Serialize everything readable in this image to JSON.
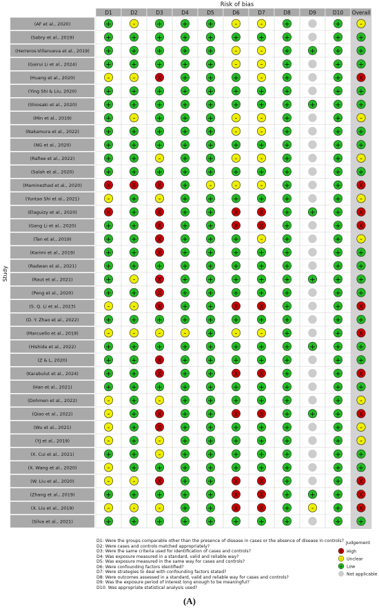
{
  "chart_data": {
    "type": "table",
    "title": "Risk of bias",
    "ylabel": "Study",
    "domains": [
      "D1",
      "D2",
      "D3",
      "D4",
      "D5",
      "D6",
      "D7",
      "D8",
      "D9",
      "D10",
      "Overall"
    ],
    "studies": [
      "(AF et al., 2020)",
      "(Sabry et al., 2019)",
      "(Herreros-Villanueva et al., 2019)",
      "(Gairui Li et al., 2024)",
      "(Huang et al., 2020)",
      "(Ying Shi & Liu, 2020)",
      "(Shiosaki et al., 2020)",
      "(Min et al., 2019)",
      "(Nakamura et al., 2022)",
      "(NG et al., 2020)",
      "(Rafiee et al., 2022)",
      "(Salah et al., 2020)",
      "(Maminezhad et al., 2020)",
      "(Yuntao Shi et al., 2021)",
      "(Elaguizy et al., 2020)",
      "(Gang Li et al., 2020)",
      "(Tan et al., 2019)",
      "(Karimi et al., 2019)",
      "(Radwan et al., 2021)",
      "(Raut et al., 2021)",
      "(Peng et al., 2020)",
      "(S. Q. Li et al., 2023)",
      "(D. Y. Zhao et al., 2022)",
      "(Marcuello et al., 2019)",
      "(Hishida et al., 2022)",
      "(Z & L, 2020)",
      "(Karabulut et al., 2024)",
      "(Han et al., 2021)",
      "(Dohmen et al., 2022)",
      "(Qiao et al., 2022)",
      "(Wu et al., 2021)",
      "(YJ et al., 2019)",
      "(X. Cui et al., 2021)",
      "(X. Wang et al., 2020)",
      "(W. Liu et al., 2020)",
      "(Zhang et al., 2019)",
      "(X. Liu et al., 2019)",
      "(Silva et al., 2021)"
    ],
    "judgements": [
      [
        "L",
        "U",
        "L",
        "L",
        "L",
        "U",
        "U",
        "L",
        "N",
        "L",
        "U"
      ],
      [
        "L",
        "L",
        "L",
        "L",
        "L",
        "L",
        "L",
        "L",
        "N",
        "L",
        "L"
      ],
      [
        "L",
        "L",
        "L",
        "L",
        "L",
        "U",
        "U",
        "L",
        "L",
        "L",
        "L"
      ],
      [
        "L",
        "L",
        "L",
        "L",
        "L",
        "U",
        "U",
        "L",
        "N",
        "L",
        "L"
      ],
      [
        "U",
        "U",
        "H",
        "L",
        "L",
        "L",
        "U",
        "L",
        "N",
        "L",
        "H"
      ],
      [
        "L",
        "L",
        "L",
        "L",
        "L",
        "L",
        "L",
        "L",
        "N",
        "L",
        "L"
      ],
      [
        "L",
        "L",
        "L",
        "L",
        "L",
        "L",
        "L",
        "L",
        "L",
        "L",
        "L"
      ],
      [
        "L",
        "U",
        "L",
        "L",
        "L",
        "U",
        "U",
        "L",
        "N",
        "L",
        "U"
      ],
      [
        "L",
        "L",
        "L",
        "L",
        "L",
        "U",
        "U",
        "L",
        "N",
        "L",
        "L"
      ],
      [
        "L",
        "L",
        "L",
        "L",
        "L",
        "L",
        "L",
        "L",
        "N",
        "L",
        "L"
      ],
      [
        "L",
        "L",
        "U",
        "L",
        "L",
        "U",
        "U",
        "L",
        "N",
        "L",
        "U"
      ],
      [
        "L",
        "L",
        "L",
        "L",
        "L",
        "L",
        "L",
        "L",
        "N",
        "L",
        "L"
      ],
      [
        "H",
        "H",
        "H",
        "L",
        "U",
        "U",
        "U",
        "L",
        "N",
        "L",
        "H"
      ],
      [
        "U",
        "L",
        "U",
        "L",
        "L",
        "L",
        "L",
        "L",
        "N",
        "L",
        "U"
      ],
      [
        "H",
        "L",
        "H",
        "L",
        "L",
        "H",
        "H",
        "L",
        "L",
        "L",
        "H"
      ],
      [
        "L",
        "L",
        "H",
        "L",
        "L",
        "H",
        "H",
        "L",
        "N",
        "L",
        "H"
      ],
      [
        "L",
        "L",
        "H",
        "L",
        "L",
        "L",
        "U",
        "L",
        "N",
        "L",
        "U"
      ],
      [
        "L",
        "L",
        "H",
        "L",
        "L",
        "L",
        "L",
        "L",
        "N",
        "L",
        "L"
      ],
      [
        "L",
        "L",
        "L",
        "L",
        "L",
        "L",
        "L",
        "L",
        "N",
        "L",
        "L"
      ],
      [
        "L",
        "U",
        "H",
        "L",
        "L",
        "L",
        "L",
        "L",
        "L",
        "L",
        "L"
      ],
      [
        "L",
        "L",
        "H",
        "L",
        "L",
        "L",
        "L",
        "L",
        "N",
        "L",
        "L"
      ],
      [
        "U",
        "U",
        "H",
        "L",
        "L",
        "H",
        "H",
        "L",
        "N",
        "L",
        "H"
      ],
      [
        "L",
        "L",
        "L",
        "L",
        "L",
        "L",
        "L",
        "L",
        "N",
        "L",
        "L"
      ],
      [
        "U",
        "U",
        "U",
        "U",
        "L",
        "U",
        "U",
        "L",
        "N",
        "L",
        "H"
      ],
      [
        "L",
        "L",
        "L",
        "L",
        "L",
        "L",
        "L",
        "L",
        "L",
        "L",
        "L"
      ],
      [
        "L",
        "L",
        "H",
        "L",
        "L",
        "L",
        "L",
        "L",
        "N",
        "L",
        "L"
      ],
      [
        "L",
        "L",
        "H",
        "L",
        "L",
        "H",
        "H",
        "L",
        "N",
        "L",
        "H"
      ],
      [
        "L",
        "L",
        "L",
        "L",
        "L",
        "L",
        "L",
        "L",
        "N",
        "L",
        "L"
      ],
      [
        "U",
        "L",
        "U",
        "L",
        "L",
        "L",
        "L",
        "L",
        "N",
        "L",
        "U"
      ],
      [
        "U",
        "L",
        "H",
        "L",
        "L",
        "H",
        "H",
        "L",
        "L",
        "L",
        "H"
      ],
      [
        "U",
        "L",
        "H",
        "L",
        "L",
        "L",
        "L",
        "L",
        "N",
        "L",
        "U"
      ],
      [
        "U",
        "L",
        "U",
        "L",
        "L",
        "L",
        "L",
        "L",
        "N",
        "L",
        "U"
      ],
      [
        "L",
        "L",
        "U",
        "L",
        "L",
        "L",
        "L",
        "L",
        "N",
        "L",
        "L"
      ],
      [
        "U",
        "L",
        "L",
        "L",
        "L",
        "L",
        "L",
        "L",
        "N",
        "L",
        "L"
      ],
      [
        "U",
        "U",
        "H",
        "L",
        "L",
        "H",
        "H",
        "L",
        "N",
        "L",
        "H"
      ],
      [
        "L",
        "L",
        "L",
        "L",
        "L",
        "H",
        "H",
        "L",
        "L",
        "L",
        "H"
      ],
      [
        "U",
        "U",
        "U",
        "L",
        "L",
        "H",
        "H",
        "L",
        "U",
        "L",
        "H"
      ],
      [
        "L",
        "L",
        "L",
        "L",
        "L",
        "L",
        "L",
        "L",
        "N",
        "L",
        "L"
      ]
    ],
    "domain_descriptions": [
      "D1: Were the groups comparable other than the presence of disease in cases or the absence of disease in controls?",
      "D2: Were cases and controls matched appropriately?",
      "D3: Were the same criteria used for identification of cases and controls?",
      "D4: Was exposure measured in a standard, valid and reliable way?",
      "D5: Was exposure measured in the same way for cases and controls?",
      "D6: Were confounding factors identified?",
      "D7: Were strategies to deal with confounding factors stated?",
      "D8: Were outcomes assessed in a standard, valid and reliable way for cases and controls?",
      "D9: Was the exposure period of interest long enough to be meaningful?",
      "D10: Was appropriate statistical analysis used?"
    ],
    "legend": {
      "title": "Judgement",
      "items": [
        {
          "key": "H",
          "label": "High",
          "symbol": "X",
          "color": "#cc0000"
        },
        {
          "key": "U",
          "label": "Unclear",
          "symbol": "-",
          "color": "#eeee00"
        },
        {
          "key": "L",
          "label": "Low",
          "symbol": "+",
          "color": "#22bb22"
        },
        {
          "key": "N",
          "label": "Not applicable",
          "symbol": "",
          "color": "#cccccc"
        }
      ]
    }
  },
  "caption": "(A)"
}
